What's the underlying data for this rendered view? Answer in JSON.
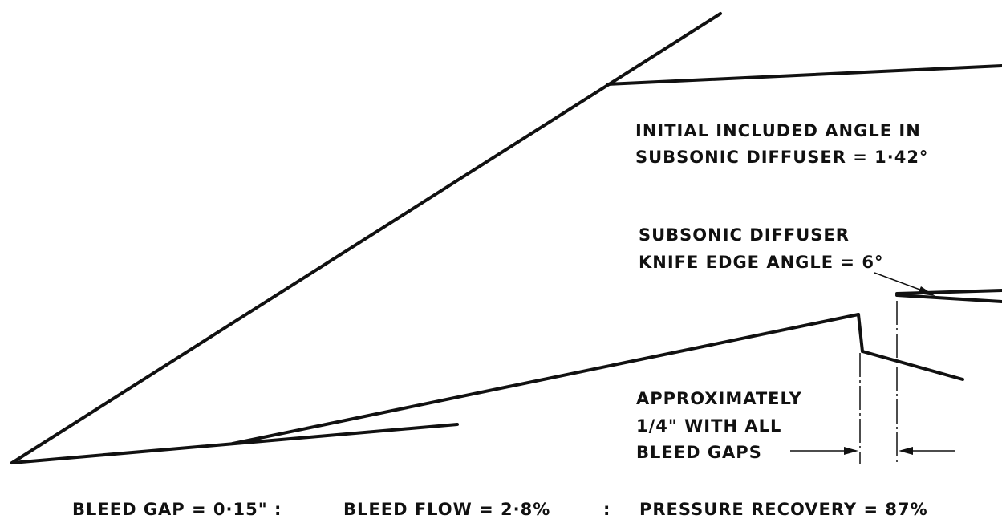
{
  "annotations": [
    {
      "lines": [
        "INITIAL INCLUDED ANGLE IN",
        "SUBSONIC DIFFUSER = 1·42°"
      ]
    },
    {
      "lines": [
        "SUBSONIC DIFFUSER",
        "KNIFE EDGE ANGLE = 6°"
      ]
    },
    {
      "lines": [
        "APPROXIMATELY",
        "1/4\" WITH ALL",
        "BLEED GAPS"
      ]
    }
  ],
  "caption": [
    "BLEED GAP = 0·15\" :",
    "BLEED FLOW = 2·8%",
    ":",
    "PRESSURE RECOVERY = 87%"
  ]
}
